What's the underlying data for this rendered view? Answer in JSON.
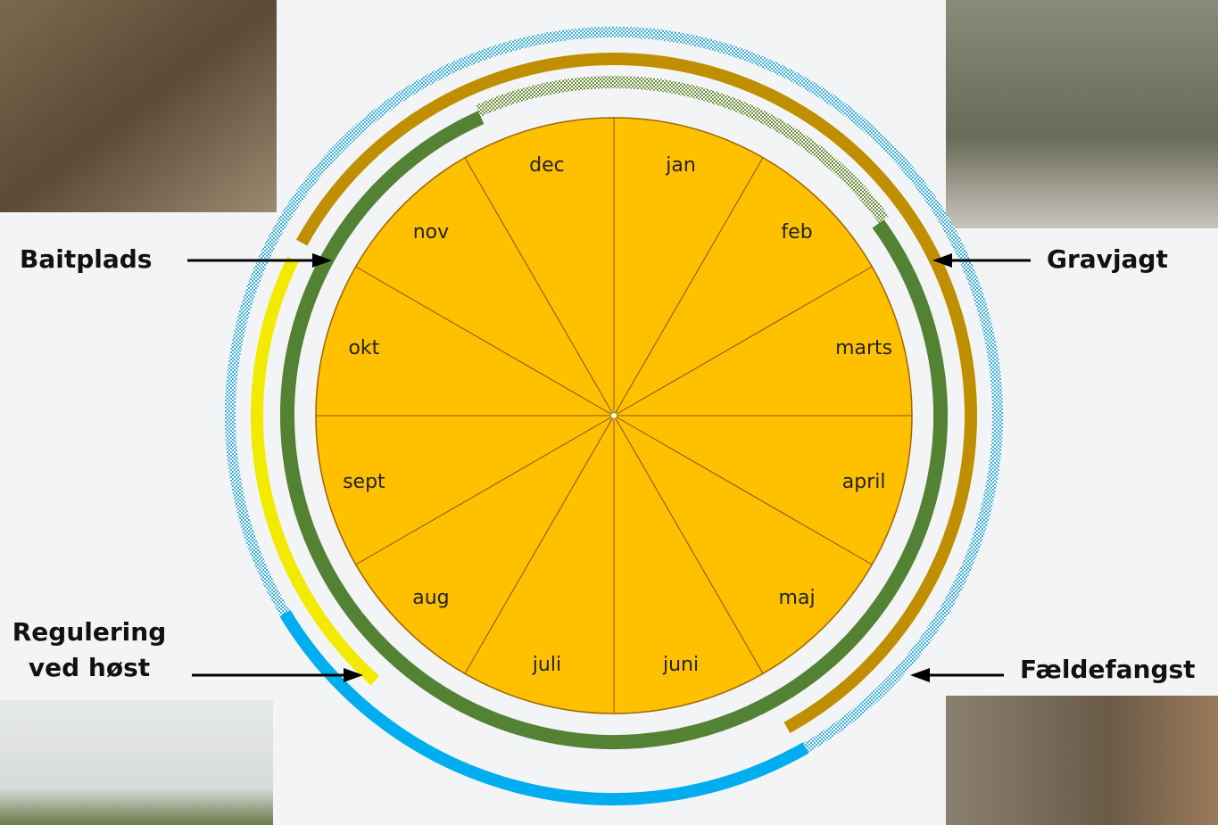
{
  "months": [
    "jan",
    "feb",
    "marts",
    "april",
    "maj",
    "juni",
    "juli",
    "aug",
    "sept",
    "okt",
    "nov",
    "dec"
  ],
  "labels": {
    "baitplads": "Baitplads",
    "gravjagt": "Gravjagt",
    "regulering": [
      "Regulering",
      "ved høst"
    ],
    "faeldefangst": "Fældefangst"
  }
}
